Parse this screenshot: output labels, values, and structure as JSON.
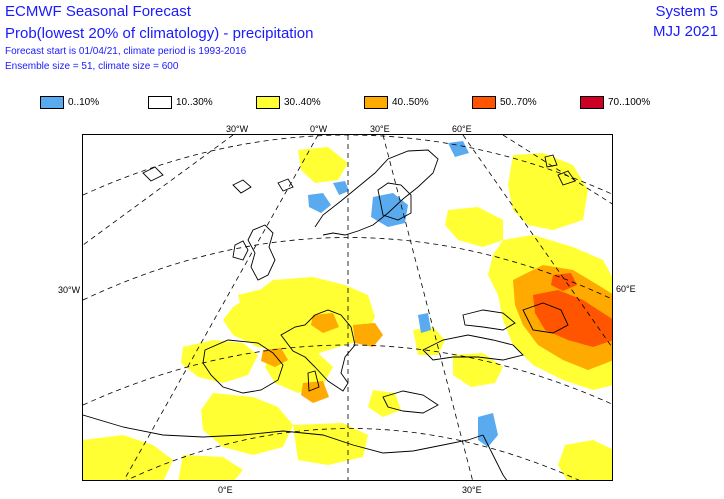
{
  "header": {
    "title": "ECMWF Seasonal Forecast",
    "subtitle": "Prob(lowest 20% of climatology) - precipitation",
    "info_line1": "Forecast start is 01/04/21, climate period is 1993-2016",
    "info_line2": "Ensemble size = 51, climate size = 600",
    "system": "System 5",
    "period": "MJJ 2021"
  },
  "legend": [
    {
      "label": "0..10%",
      "color": "#5aaaf0"
    },
    {
      "label": "10..30%",
      "color": "#ffffff"
    },
    {
      "label": "30..40%",
      "color": "#ffff33"
    },
    {
      "label": "40..50%",
      "color": "#ffaa00"
    },
    {
      "label": "50..70%",
      "color": "#ff5500"
    },
    {
      "label": "70..100%",
      "color": "#cc0022"
    }
  ],
  "graticule_labels": {
    "top": [
      "30°W",
      "0°W",
      "30°E",
      "60°E"
    ],
    "left": "30°W",
    "right": "60°E",
    "bottom": [
      "0°E",
      "30°E"
    ]
  },
  "colors": {
    "title_text": "#1a1aff",
    "graticule": "#000000",
    "coastline": "#000000"
  }
}
